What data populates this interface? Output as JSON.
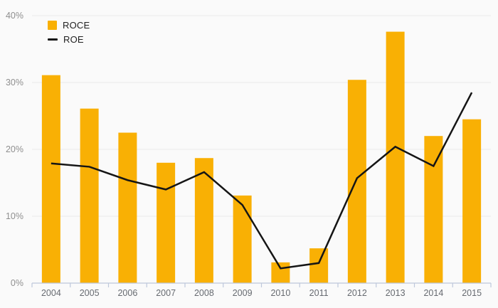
{
  "chart_data": {
    "type": "bar",
    "subtype": "combo-bar-line",
    "title": "",
    "categories": [
      "2004",
      "2005",
      "2006",
      "2007",
      "2008",
      "2009",
      "2010",
      "2011",
      "2012",
      "2013",
      "2014",
      "2015"
    ],
    "series": [
      {
        "name": "ROCE",
        "type": "bar",
        "color": "#f9b004",
        "values": [
          31.1,
          26.1,
          22.5,
          18.0,
          18.7,
          13.1,
          3.1,
          5.2,
          30.4,
          37.6,
          22.0,
          24.5
        ]
      },
      {
        "name": "ROE",
        "type": "line",
        "color": "#151515",
        "values": [
          17.9,
          17.4,
          15.4,
          14.0,
          16.6,
          11.7,
          2.2,
          3.0,
          15.7,
          20.4,
          17.5,
          28.5
        ]
      }
    ],
    "xlabel": "",
    "ylabel": "",
    "y_axis": {
      "min": 0,
      "max": 40,
      "ticks": [
        0,
        10,
        20,
        30,
        40
      ],
      "tick_labels": [
        "0%",
        "10%",
        "20%",
        "30%",
        "40%"
      ]
    },
    "grid": true,
    "legend_position": "top-left"
  },
  "legend": {
    "items": [
      {
        "label": "ROCE",
        "swatch": "square",
        "color": "#f9b004"
      },
      {
        "label": "ROE",
        "swatch": "line",
        "color": "#151515"
      }
    ]
  },
  "colors": {
    "background": "#fafafa",
    "gridline": "#e9e9e9",
    "axis_line": "#bec8db",
    "y_tick_text": "#8f8f8f",
    "x_tick_text": "#666a70",
    "bar": "#f9b004",
    "line": "#151515"
  }
}
